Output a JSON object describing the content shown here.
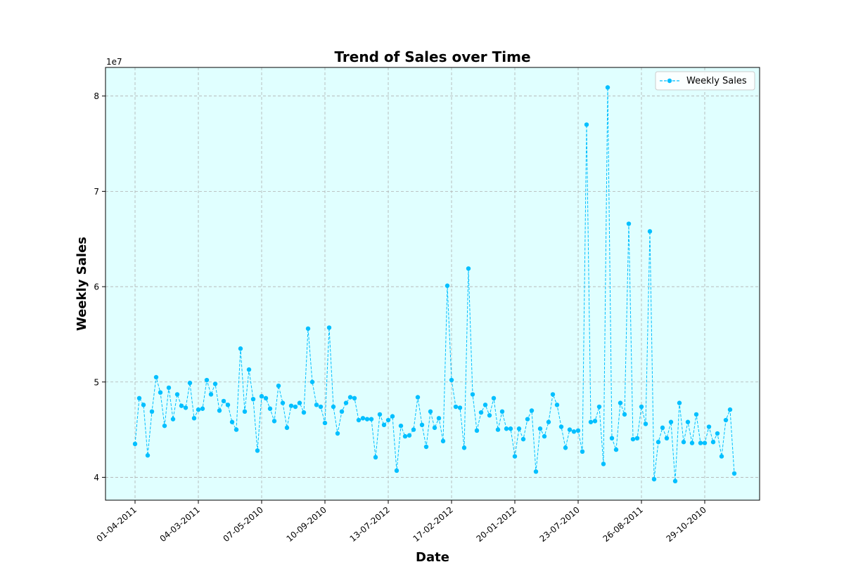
{
  "chart_data": {
    "type": "line",
    "title": "Trend of Sales over Time",
    "xlabel": "Date",
    "ylabel": "Weekly Sales",
    "y_multiplier_label": "1e7",
    "ylim": [
      3.76,
      8.3
    ],
    "xlim": [
      -7,
      148
    ],
    "grid": true,
    "legend_position": "top-right",
    "colors": {
      "series": "#00bfff",
      "plot_background": "#e0ffff",
      "grid": "#b0b0b0",
      "text": "#000000"
    },
    "x_ticks": [
      {
        "x": 0,
        "label": "01-04-2011"
      },
      {
        "x": 15,
        "label": "04-03-2011"
      },
      {
        "x": 30,
        "label": "07-05-2010"
      },
      {
        "x": 45,
        "label": "10-09-2010"
      },
      {
        "x": 60,
        "label": "13-07-2012"
      },
      {
        "x": 75,
        "label": "17-02-2012"
      },
      {
        "x": 90,
        "label": "20-01-2012"
      },
      {
        "x": 105,
        "label": "23-07-2010"
      },
      {
        "x": 120,
        "label": "26-08-2011"
      },
      {
        "x": 135,
        "label": "29-10-2010"
      }
    ],
    "y_ticks": [
      {
        "y": 4,
        "label": "4"
      },
      {
        "y": 5,
        "label": "5"
      },
      {
        "y": 6,
        "label": "6"
      },
      {
        "y": 7,
        "label": "7"
      },
      {
        "y": 8,
        "label": "8"
      }
    ],
    "series": [
      {
        "name": "Weekly Sales",
        "values": [
          4.35,
          4.83,
          4.76,
          4.23,
          4.69,
          5.05,
          4.89,
          4.54,
          4.94,
          4.61,
          4.87,
          4.75,
          4.73,
          4.99,
          4.62,
          4.71,
          4.72,
          5.02,
          4.87,
          4.98,
          4.7,
          4.8,
          4.76,
          4.58,
          4.5,
          5.35,
          4.69,
          5.13,
          4.82,
          4.28,
          4.85,
          4.83,
          4.72,
          4.59,
          4.96,
          4.78,
          4.52,
          4.75,
          4.74,
          4.78,
          4.68,
          5.56,
          5.0,
          4.76,
          4.74,
          4.57,
          5.57,
          4.74,
          4.46,
          4.69,
          4.78,
          4.84,
          4.83,
          4.6,
          4.62,
          4.61,
          4.61,
          4.21,
          4.66,
          4.55,
          4.6,
          4.64,
          4.07,
          4.54,
          4.43,
          4.44,
          4.5,
          4.84,
          4.55,
          4.32,
          4.69,
          4.52,
          4.62,
          4.38,
          6.01,
          5.02,
          4.74,
          4.73,
          4.31,
          6.19,
          4.87,
          4.49,
          4.68,
          4.76,
          4.65,
          4.83,
          4.5,
          4.69,
          4.51,
          4.51,
          4.22,
          4.51,
          4.4,
          4.61,
          4.7,
          4.06,
          4.51,
          4.43,
          4.58,
          4.87,
          4.76,
          4.53,
          4.31,
          4.5,
          4.48,
          4.49,
          4.27,
          7.7,
          4.58,
          4.59,
          4.74,
          4.14,
          8.09,
          4.41,
          4.29,
          4.78,
          4.66,
          6.66,
          4.4,
          4.41,
          4.74,
          4.56,
          6.58,
          3.98,
          4.37,
          4.52,
          4.41,
          4.58,
          3.96,
          4.78,
          4.37,
          4.58,
          4.36,
          4.66,
          4.36,
          4.36,
          4.53,
          4.37,
          4.46,
          4.22,
          4.6,
          4.71,
          4.04
        ]
      }
    ]
  }
}
